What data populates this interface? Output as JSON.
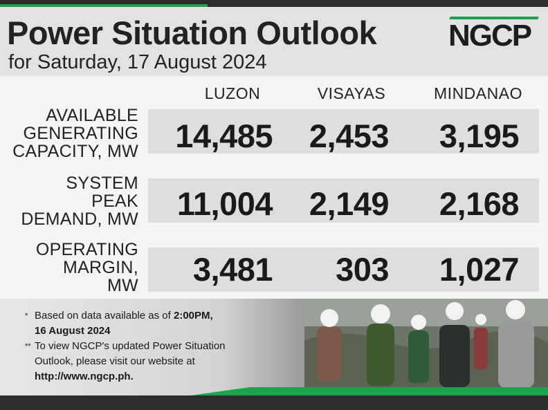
{
  "header": {
    "title": "Power Situation Outlook",
    "subtitle": "for Saturday, 17 August 2024",
    "logo_text": "NGCP"
  },
  "columns": [
    "LUZON",
    "VISAYAS",
    "MINDANAO"
  ],
  "rows": [
    {
      "label_lines": [
        "AVAILABLE",
        "GENERATING",
        "CAPACITY, MW"
      ],
      "values": [
        "14,485",
        "2,453",
        "3,195"
      ]
    },
    {
      "label_lines": [
        "SYSTEM",
        "PEAK",
        "DEMAND, MW"
      ],
      "values": [
        "11,004",
        "2,149",
        "2,168"
      ]
    },
    {
      "label_lines": [
        "OPERATING",
        "MARGIN,",
        "MW"
      ],
      "values": [
        "3,481",
        "303",
        "1,027"
      ]
    }
  ],
  "notes": {
    "note1_mark": "*",
    "note1_text": "Based on data available as of ",
    "note1_bold1": "2:00PM,",
    "note1_bold2": "16 August 2024",
    "note2_mark": "**",
    "note2_line1": "To view NGCP's updated Power Situation",
    "note2_line2": "Outlook, please visit our website at",
    "note2_url": "http://www.ngcp.ph."
  },
  "colors": {
    "accent_green": "#1aa34a",
    "dark_bar": "#2c2c2c"
  }
}
